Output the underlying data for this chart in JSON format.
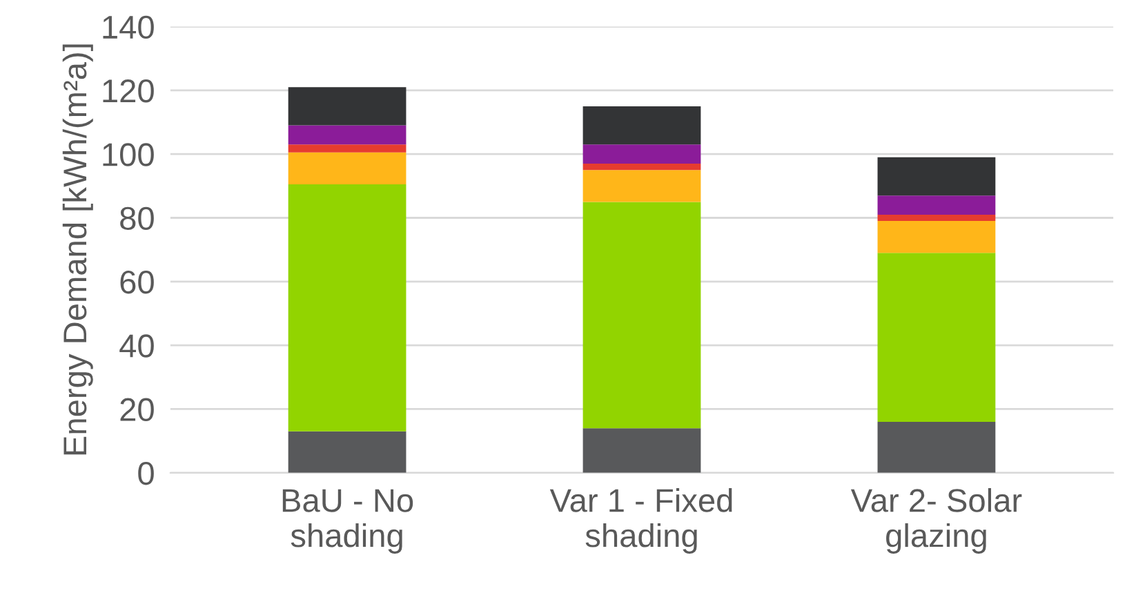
{
  "chart_data": {
    "type": "bar",
    "stacked": true,
    "ylabel": "Energy Demand [kWh/(m²a)]",
    "categories": [
      "BaU - No\nshading",
      "Var 1 - Fixed\nshading",
      "Var 2- Solar\nglazing"
    ],
    "series": [
      {
        "color": "#58595b",
        "values": [
          13,
          14,
          16
        ]
      },
      {
        "color": "#92d400",
        "values": [
          77.5,
          71,
          53
        ]
      },
      {
        "color": "#ffb619",
        "values": [
          10,
          10,
          10
        ]
      },
      {
        "color": "#e63c2f",
        "values": [
          2.5,
          2,
          2
        ]
      },
      {
        "color": "#8b1c99",
        "values": [
          6,
          6,
          6
        ]
      },
      {
        "color": "#333436",
        "values": [
          12,
          12,
          12
        ]
      }
    ],
    "ylim": [
      0,
      140
    ],
    "yticks": [
      0,
      20,
      40,
      60,
      80,
      100,
      120,
      140
    ],
    "grid": "y",
    "legend": false
  }
}
